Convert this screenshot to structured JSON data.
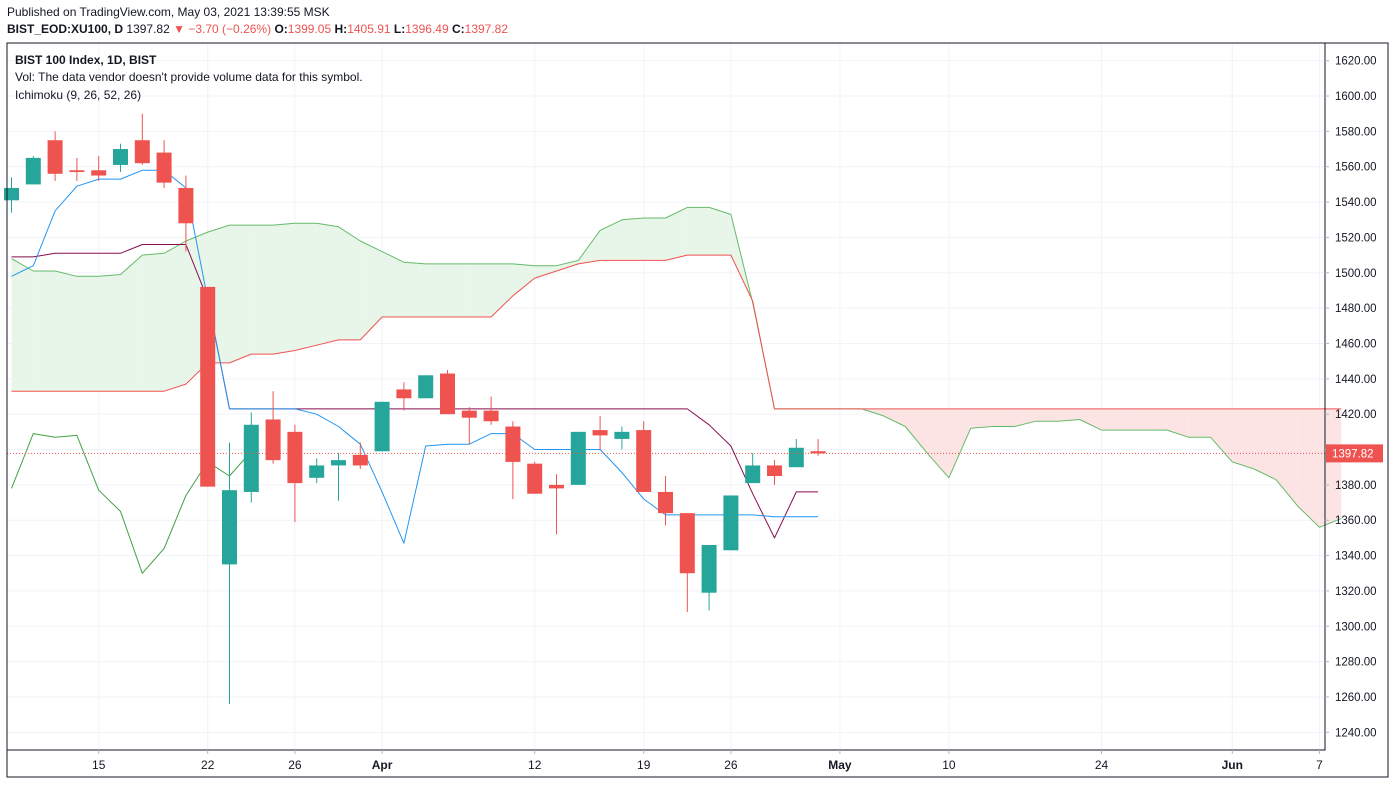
{
  "header": {
    "published": "Published on TradingView.com, May 03, 2021 13:39:55 MSK",
    "symbol": "BIST_EOD:XU100, D",
    "last": "1397.82",
    "change_arrow": "▼",
    "change": "−3.70 (−0.26%)",
    "open_label": "O:",
    "open": "1399.05",
    "high_label": "H:",
    "high": "1405.91",
    "low_label": "L:",
    "low": "1396.49",
    "close_label": "C:",
    "close": "1397.82"
  },
  "legend": {
    "title": "BIST 100 Index, 1D, BIST",
    "volume_note": "Vol: The data vendor doesn't provide volume data for this symbol.",
    "indicator": "Ichimoku (9, 26, 52, 26)"
  },
  "colors": {
    "up": "#26a69a",
    "down": "#ef5350",
    "tenkan": "#2196f3",
    "kijun": "#880e4f",
    "lagging": "#43a047",
    "span_a": "#66bb6a",
    "span_b": "#ef5350",
    "cloud_bull": "#e8f5e9",
    "cloud_bear": "#fce4e4",
    "grid": "#f0f3fa",
    "price_label": "#ef5350"
  },
  "chart_data": {
    "type": "candlestick",
    "title": "BIST 100 Index, 1D, BIST",
    "ylim": [
      1230,
      1630
    ],
    "grid": true,
    "y_ticks": [
      "1620.00",
      "1600.00",
      "1580.00",
      "1560.00",
      "1540.00",
      "1520.00",
      "1500.00",
      "1480.00",
      "1460.00",
      "1440.00",
      "1420.00",
      "1400.00",
      "1380.00",
      "1360.00",
      "1340.00",
      "1320.00",
      "1300.00",
      "1280.00",
      "1260.00",
      "1240.00"
    ],
    "x_tick_labels": [
      {
        "label": "15",
        "index": 4,
        "bold": false
      },
      {
        "label": "22",
        "index": 9,
        "bold": false
      },
      {
        "label": "26",
        "index": 13,
        "bold": false
      },
      {
        "label": "Apr",
        "index": 17,
        "bold": true
      },
      {
        "label": "12",
        "index": 24,
        "bold": false
      },
      {
        "label": "19",
        "index": 29,
        "bold": false
      },
      {
        "label": "26",
        "index": 33,
        "bold": false
      },
      {
        "label": "May",
        "index": 38,
        "bold": true
      },
      {
        "label": "10",
        "index": 43,
        "bold": false
      },
      {
        "label": "24",
        "index": 50,
        "bold": false
      },
      {
        "label": "Jun",
        "index": 56,
        "bold": true
      },
      {
        "label": "7",
        "index": 60,
        "bold": false
      }
    ],
    "candles": [
      {
        "o": 1541,
        "h": 1554,
        "l": 1534,
        "c": 1548
      },
      {
        "o": 1550,
        "h": 1566,
        "l": 1550,
        "c": 1565
      },
      {
        "o": 1575,
        "h": 1580,
        "l": 1552,
        "c": 1556
      },
      {
        "o": 1558,
        "h": 1565,
        "l": 1552,
        "c": 1557
      },
      {
        "o": 1558,
        "h": 1566,
        "l": 1552,
        "c": 1555
      },
      {
        "o": 1561,
        "h": 1573,
        "l": 1557,
        "c": 1570
      },
      {
        "o": 1575,
        "h": 1590,
        "l": 1561,
        "c": 1562
      },
      {
        "o": 1568,
        "h": 1575,
        "l": 1548,
        "c": 1551
      },
      {
        "o": 1548,
        "h": 1555,
        "l": 1512,
        "c": 1528
      },
      {
        "o": 1492,
        "h": 1492,
        "l": 1379,
        "c": 1379
      },
      {
        "o": 1335,
        "h": 1404,
        "l": 1256,
        "c": 1377
      },
      {
        "o": 1376,
        "h": 1421,
        "l": 1370,
        "c": 1414
      },
      {
        "o": 1417,
        "h": 1433,
        "l": 1392,
        "c": 1394
      },
      {
        "o": 1410,
        "h": 1414,
        "l": 1359,
        "c": 1381
      },
      {
        "o": 1384,
        "h": 1395,
        "l": 1381,
        "c": 1391
      },
      {
        "o": 1391,
        "h": 1398,
        "l": 1371,
        "c": 1394
      },
      {
        "o": 1397,
        "h": 1404,
        "l": 1389,
        "c": 1391
      },
      {
        "o": 1399,
        "h": 1427,
        "l": 1399,
        "c": 1427
      },
      {
        "o": 1434,
        "h": 1438,
        "l": 1422,
        "c": 1429
      },
      {
        "o": 1429,
        "h": 1442,
        "l": 1429,
        "c": 1442
      },
      {
        "o": 1443,
        "h": 1445,
        "l": 1420,
        "c": 1420
      },
      {
        "o": 1422,
        "h": 1424,
        "l": 1403,
        "c": 1418
      },
      {
        "o": 1422,
        "h": 1430,
        "l": 1414,
        "c": 1416
      },
      {
        "o": 1413,
        "h": 1416,
        "l": 1372,
        "c": 1393
      },
      {
        "o": 1392,
        "h": 1393,
        "l": 1375,
        "c": 1375
      },
      {
        "o": 1380,
        "h": 1386,
        "l": 1352,
        "c": 1378
      },
      {
        "o": 1380,
        "h": 1410,
        "l": 1380,
        "c": 1410
      },
      {
        "o": 1411,
        "h": 1419,
        "l": 1400,
        "c": 1408
      },
      {
        "o": 1406,
        "h": 1413,
        "l": 1400,
        "c": 1410
      },
      {
        "o": 1411,
        "h": 1416,
        "l": 1376,
        "c": 1376
      },
      {
        "o": 1376,
        "h": 1385,
        "l": 1357,
        "c": 1364
      },
      {
        "o": 1364,
        "h": 1364,
        "l": 1308,
        "c": 1330
      },
      {
        "o": 1319,
        "h": 1346,
        "l": 1309,
        "c": 1346
      },
      {
        "o": 1343,
        "h": 1374,
        "l": 1343,
        "c": 1374
      },
      {
        "o": 1381,
        "h": 1398,
        "l": 1381,
        "c": 1391
      },
      {
        "o": 1391,
        "h": 1394,
        "l": 1380,
        "c": 1385
      },
      {
        "o": 1390,
        "h": 1406,
        "l": 1390,
        "c": 1401
      },
      {
        "o": 1399.05,
        "h": 1405.91,
        "l": 1396.49,
        "c": 1397.82
      }
    ],
    "tenkan": [
      [
        0,
        1498
      ],
      [
        1,
        1504
      ],
      [
        2,
        1535
      ],
      [
        3,
        1549
      ],
      [
        4,
        1553
      ],
      [
        5,
        1553
      ],
      [
        6,
        1558
      ],
      [
        7,
        1558
      ],
      [
        8,
        1548
      ],
      [
        9,
        1485
      ],
      [
        10,
        1423
      ],
      [
        11,
        1423
      ],
      [
        12,
        1423
      ],
      [
        13,
        1423
      ],
      [
        14,
        1420
      ],
      [
        15,
        1413
      ],
      [
        16,
        1403
      ],
      [
        17,
        1376
      ],
      [
        18,
        1347
      ],
      [
        19,
        1402
      ],
      [
        20,
        1403
      ],
      [
        21,
        1403
      ],
      [
        22,
        1409
      ],
      [
        23,
        1409
      ],
      [
        24,
        1400
      ],
      [
        25,
        1400
      ],
      [
        26,
        1400
      ],
      [
        27,
        1400
      ],
      [
        28,
        1387
      ],
      [
        29,
        1372
      ],
      [
        30,
        1363
      ],
      [
        31,
        1363
      ],
      [
        32,
        1363
      ],
      [
        33,
        1363
      ],
      [
        34,
        1363
      ],
      [
        35,
        1362
      ],
      [
        36,
        1362
      ],
      [
        37,
        1362
      ]
    ],
    "kijun": [
      [
        0,
        1509
      ],
      [
        1,
        1509
      ],
      [
        2,
        1511
      ],
      [
        3,
        1511
      ],
      [
        4,
        1511
      ],
      [
        5,
        1511
      ],
      [
        6,
        1516
      ],
      [
        7,
        1516
      ],
      [
        8,
        1516
      ],
      [
        9,
        1485
      ],
      [
        10,
        1423
      ],
      [
        11,
        1423
      ],
      [
        12,
        1423
      ],
      [
        13,
        1423
      ],
      [
        14,
        1423
      ],
      [
        15,
        1423
      ],
      [
        16,
        1423
      ],
      [
        17,
        1423
      ],
      [
        18,
        1423
      ],
      [
        19,
        1423
      ],
      [
        20,
        1423
      ],
      [
        21,
        1423
      ],
      [
        22,
        1423
      ],
      [
        23,
        1423
      ],
      [
        24,
        1423
      ],
      [
        25,
        1423
      ],
      [
        26,
        1423
      ],
      [
        27,
        1423
      ],
      [
        28,
        1423
      ],
      [
        29,
        1423
      ],
      [
        30,
        1423
      ],
      [
        31,
        1423
      ],
      [
        32,
        1414
      ],
      [
        33,
        1402
      ],
      [
        34,
        1375
      ],
      [
        35,
        1350
      ],
      [
        36,
        1376
      ],
      [
        37,
        1376
      ]
    ],
    "lagging": [
      [
        0,
        1378
      ],
      [
        1,
        1409
      ],
      [
        2,
        1407
      ],
      [
        3,
        1408
      ],
      [
        4,
        1377
      ],
      [
        5,
        1365
      ],
      [
        6,
        1330
      ],
      [
        7,
        1344
      ],
      [
        8,
        1374
      ],
      [
        9,
        1393
      ],
      [
        10,
        1385
      ],
      [
        11,
        1399
      ]
    ],
    "span_a": [
      [
        0,
        1508
      ],
      [
        1,
        1501
      ],
      [
        2,
        1501
      ],
      [
        3,
        1498
      ],
      [
        4,
        1498
      ],
      [
        5,
        1499
      ],
      [
        6,
        1510
      ],
      [
        7,
        1511
      ],
      [
        8,
        1518
      ],
      [
        9,
        1523
      ],
      [
        10,
        1527
      ],
      [
        11,
        1527
      ],
      [
        12,
        1527
      ],
      [
        13,
        1528
      ],
      [
        14,
        1528
      ],
      [
        15,
        1526
      ],
      [
        16,
        1518
      ],
      [
        17,
        1512
      ],
      [
        18,
        1506
      ],
      [
        19,
        1505
      ],
      [
        20,
        1505
      ],
      [
        21,
        1505
      ],
      [
        22,
        1505
      ],
      [
        23,
        1505
      ],
      [
        24,
        1504
      ],
      [
        25,
        1504
      ],
      [
        26,
        1507
      ],
      [
        27,
        1524
      ],
      [
        28,
        1530
      ],
      [
        29,
        1531
      ],
      [
        30,
        1531
      ],
      [
        31,
        1537
      ],
      [
        32,
        1537
      ],
      [
        33,
        1533
      ],
      [
        34,
        1483
      ],
      [
        35,
        1423
      ],
      [
        36,
        1423
      ],
      [
        37,
        1423
      ],
      [
        38,
        1423
      ],
      [
        39,
        1423
      ],
      [
        40,
        1419
      ],
      [
        41,
        1413
      ],
      [
        42,
        1398
      ],
      [
        43,
        1384
      ],
      [
        44,
        1412
      ],
      [
        45,
        1413
      ],
      [
        46,
        1413
      ],
      [
        47,
        1416
      ],
      [
        48,
        1416
      ],
      [
        49,
        1417
      ],
      [
        50,
        1411
      ],
      [
        51,
        1411
      ],
      [
        52,
        1411
      ],
      [
        53,
        1411
      ],
      [
        54,
        1407
      ],
      [
        55,
        1407
      ],
      [
        56,
        1393
      ],
      [
        57,
        1389
      ],
      [
        58,
        1383
      ],
      [
        59,
        1368
      ],
      [
        60,
        1356
      ],
      [
        61,
        1361
      ]
    ],
    "span_b": [
      [
        0,
        1433
      ],
      [
        1,
        1433
      ],
      [
        2,
        1433
      ],
      [
        3,
        1433
      ],
      [
        4,
        1433
      ],
      [
        5,
        1433
      ],
      [
        6,
        1433
      ],
      [
        7,
        1433
      ],
      [
        8,
        1437
      ],
      [
        9,
        1449
      ],
      [
        10,
        1449
      ],
      [
        11,
        1454
      ],
      [
        12,
        1454
      ],
      [
        13,
        1456
      ],
      [
        14,
        1459
      ],
      [
        15,
        1462
      ],
      [
        16,
        1462
      ],
      [
        17,
        1475
      ],
      [
        18,
        1475
      ],
      [
        19,
        1475
      ],
      [
        20,
        1475
      ],
      [
        21,
        1475
      ],
      [
        22,
        1475
      ],
      [
        23,
        1487
      ],
      [
        24,
        1497
      ],
      [
        25,
        1501
      ],
      [
        26,
        1505
      ],
      [
        27,
        1507
      ],
      [
        28,
        1507
      ],
      [
        29,
        1507
      ],
      [
        30,
        1507
      ],
      [
        31,
        1510
      ],
      [
        32,
        1510
      ],
      [
        33,
        1510
      ],
      [
        34,
        1484
      ],
      [
        35,
        1423
      ],
      [
        36,
        1423
      ],
      [
        37,
        1423
      ],
      [
        38,
        1423
      ],
      [
        39,
        1423
      ],
      [
        40,
        1423
      ],
      [
        41,
        1423
      ],
      [
        42,
        1423
      ],
      [
        43,
        1423
      ],
      [
        44,
        1423
      ],
      [
        45,
        1423
      ],
      [
        46,
        1423
      ],
      [
        47,
        1423
      ],
      [
        48,
        1423
      ],
      [
        49,
        1423
      ],
      [
        50,
        1423
      ],
      [
        51,
        1423
      ],
      [
        52,
        1423
      ],
      [
        53,
        1423
      ],
      [
        54,
        1423
      ],
      [
        55,
        1423
      ],
      [
        56,
        1423
      ],
      [
        57,
        1423
      ],
      [
        58,
        1423
      ],
      [
        59,
        1423
      ],
      [
        60,
        1423
      ],
      [
        61,
        1423
      ]
    ],
    "current_price": 1397.82,
    "current_price_label": "1397.82"
  }
}
